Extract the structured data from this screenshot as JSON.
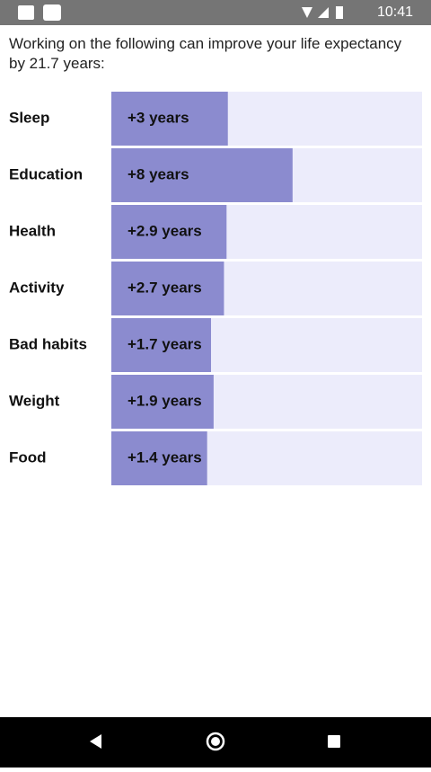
{
  "status_bar": {
    "time": "10:41"
  },
  "chart_data": {
    "type": "hbar",
    "title": "Working on the following can improve your life expectancy by 21.7 years:",
    "categories": [
      "Sleep",
      "Education",
      "Health",
      "Activity",
      "Bad habits",
      "Weight",
      "Food"
    ],
    "values": [
      3,
      8,
      2.9,
      2.7,
      1.7,
      1.9,
      1.4
    ],
    "value_labels": [
      "+3 years",
      "+8 years",
      "+2.9 years",
      "+2.7 years",
      "+1.7 years",
      "+1.9 years",
      "+1.4 years"
    ],
    "color": "#8b8bcf",
    "track_color": "#ececfb",
    "xlim": [
      -6,
      18
    ]
  }
}
